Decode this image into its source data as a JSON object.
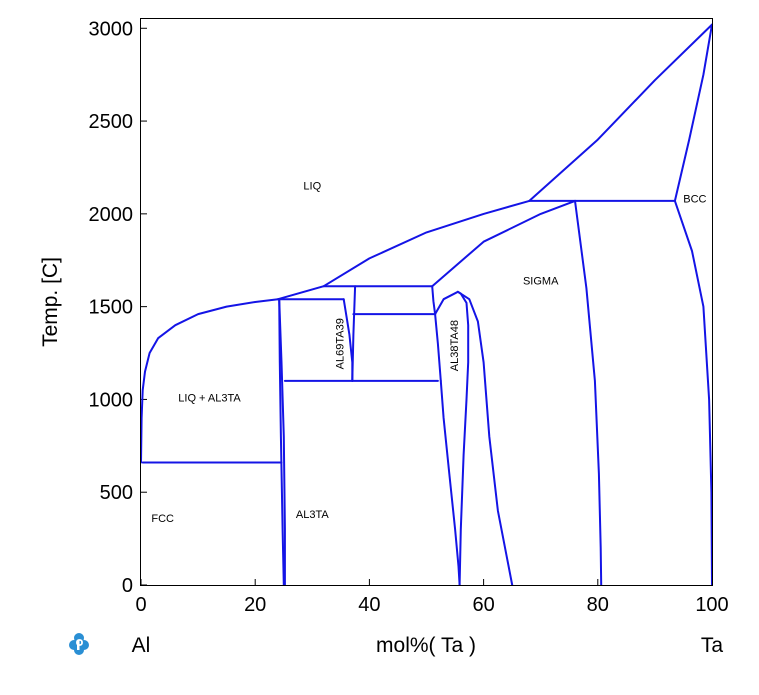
{
  "chart_data": {
    "type": "line",
    "title": "",
    "xlabel": "mol%(  Ta  )",
    "ylabel": "Temp.  [C]",
    "xlim": [
      0,
      100
    ],
    "ylim": [
      0,
      3050
    ],
    "x_ticks": [
      0,
      20,
      40,
      60,
      80,
      100
    ],
    "y_ticks": [
      0,
      500,
      1000,
      1500,
      2000,
      2500,
      3000
    ],
    "x_end_labels": {
      "left": "Al",
      "right": "Ta"
    },
    "line_color": "#1414e6",
    "grid": false,
    "phase_boundaries": [
      {
        "x": [
          0.0,
          0.1,
          0.3,
          0.7,
          1.5,
          3,
          6,
          10,
          15,
          20,
          24
        ],
        "y": [
          660,
          900,
          1050,
          1150,
          1250,
          1330,
          1400,
          1460,
          1500,
          1525,
          1540
        ]
      },
      {
        "x": [
          24,
          32,
          37.5,
          51
        ],
        "y": [
          1540,
          1610,
          1610,
          1610
        ]
      },
      {
        "x": [
          32,
          40,
          50,
          60,
          68
        ],
        "y": [
          1610,
          1760,
          1900,
          2000,
          2070
        ]
      },
      {
        "x": [
          68,
          76,
          93.5
        ],
        "y": [
          2070,
          2070,
          2070
        ]
      },
      {
        "x": [
          68,
          80,
          90,
          100
        ],
        "y": [
          2070,
          2400,
          2720,
          3020
        ]
      },
      {
        "x": [
          51,
          60,
          70,
          76
        ],
        "y": [
          1610,
          1850,
          2000,
          2070
        ]
      },
      {
        "x": [
          93.5,
          96,
          98.5,
          100
        ],
        "y": [
          2070,
          2400,
          2750,
          3020
        ]
      },
      {
        "x": [
          24,
          35.5
        ],
        "y": [
          1540,
          1540
        ]
      },
      {
        "x": [
          0.3,
          24.6
        ],
        "y": [
          660,
          660
        ]
      },
      {
        "x": [
          24.2,
          24.3,
          24.5,
          24.8,
          25.0
        ],
        "y": [
          1540,
          1200,
          800,
          300,
          0
        ]
      },
      {
        "x": [
          24.2,
          24.6,
          25.0,
          25.2,
          25.2
        ],
        "y": [
          1540,
          1200,
          800,
          300,
          0
        ]
      },
      {
        "x": [
          25.2,
          52.0
        ],
        "y": [
          1100,
          1100
        ]
      },
      {
        "x": [
          35.5,
          36.5,
          37.0,
          37.0
        ],
        "y": [
          1540,
          1350,
          1200,
          1100
        ]
      },
      {
        "x": [
          37.5,
          37.2,
          37.0
        ],
        "y": [
          1610,
          1350,
          1100
        ]
      },
      {
        "x": [
          37.2,
          51.5
        ],
        "y": [
          1460,
          1460
        ]
      },
      {
        "x": [
          51.0,
          51.2,
          51.5
        ],
        "y": [
          1610,
          1530,
          1460
        ]
      },
      {
        "x": [
          51.5,
          52.0,
          52.5
        ],
        "y": [
          1460,
          1300,
          1100
        ]
      },
      {
        "x": [
          51.5,
          53,
          55.5,
          57.5,
          59,
          60,
          61,
          62.5,
          65
        ],
        "y": [
          1460,
          1540,
          1580,
          1540,
          1420,
          1200,
          800,
          400,
          0
        ]
      },
      {
        "x": [
          52.5,
          53,
          54,
          55,
          55.6,
          55.8
        ],
        "y": [
          1100,
          900,
          600,
          300,
          100,
          0
        ]
      },
      {
        "x": [
          55.8,
          56.0,
          56.5,
          57.0,
          57.3,
          57.3,
          57.0,
          56.0,
          55.5
        ],
        "y": [
          0,
          300,
          700,
          1000,
          1200,
          1400,
          1520,
          1570,
          1580
        ]
      },
      {
        "x": [
          76,
          78,
          79.5,
          80.2,
          80.5,
          80.6
        ],
        "y": [
          2070,
          1600,
          1100,
          600,
          200,
          0
        ]
      },
      {
        "x": [
          93.5,
          96.5,
          98.5,
          99.5,
          99.9,
          100
        ],
        "y": [
          2070,
          1800,
          1500,
          1000,
          500,
          0
        ]
      }
    ],
    "region_labels": [
      {
        "text": "LIQ",
        "x": 30,
        "y": 2130,
        "rotation": 0
      },
      {
        "text": "BCC",
        "x": 97,
        "y": 2060,
        "rotation": 0
      },
      {
        "text": "SIGMA",
        "x": 70,
        "y": 1620,
        "rotation": 0
      },
      {
        "text": "LIQ + AL3TA",
        "x": 12,
        "y": 990,
        "rotation": 0
      },
      {
        "text": "FCC",
        "x": 3.8,
        "y": 340,
        "rotation": 0
      },
      {
        "text": "AL3TA",
        "x": 30,
        "y": 360,
        "rotation": 0
      },
      {
        "text": "AL69TA39",
        "x": 35.5,
        "y": 1300,
        "rotation": -90
      },
      {
        "text": "AL38TA48",
        "x": 55.5,
        "y": 1290,
        "rotation": -90
      }
    ]
  },
  "logo": {
    "name": "pandat-logo-icon",
    "color": "#2a8fd4"
  }
}
